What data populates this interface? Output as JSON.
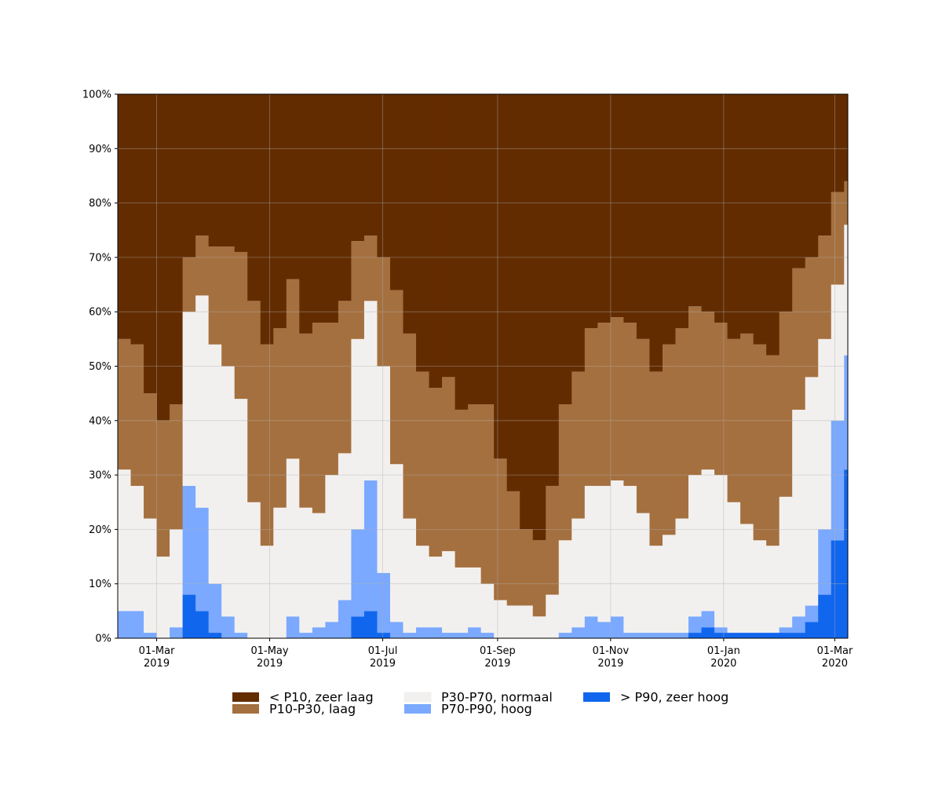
{
  "chart_data": {
    "type": "stacked_area_step",
    "x": [
      "2019-02-08",
      "2019-02-15",
      "2019-02-22",
      "2019-03-01",
      "2019-03-08",
      "2019-03-15",
      "2019-03-22",
      "2019-03-29",
      "2019-04-05",
      "2019-04-12",
      "2019-04-19",
      "2019-04-26",
      "2019-05-03",
      "2019-05-10",
      "2019-05-17",
      "2019-05-24",
      "2019-05-31",
      "2019-06-07",
      "2019-06-14",
      "2019-06-21",
      "2019-06-28",
      "2019-07-05",
      "2019-07-12",
      "2019-07-19",
      "2019-07-26",
      "2019-08-02",
      "2019-08-09",
      "2019-08-16",
      "2019-08-23",
      "2019-08-30",
      "2019-09-06",
      "2019-09-13",
      "2019-09-20",
      "2019-09-27",
      "2019-10-04",
      "2019-10-11",
      "2019-10-18",
      "2019-10-25",
      "2019-11-01",
      "2019-11-08",
      "2019-11-15",
      "2019-11-22",
      "2019-11-29",
      "2019-12-06",
      "2019-12-13",
      "2019-12-20",
      "2019-12-27",
      "2020-01-03",
      "2020-01-10",
      "2020-01-17",
      "2020-01-24",
      "2020-01-31",
      "2020-02-07",
      "2020-02-14",
      "2020-02-21",
      "2020-02-28",
      "2020-03-06"
    ],
    "series": [
      {
        "name": "< P10, zeer laag",
        "color": "#632c00",
        "values": [
          45,
          46,
          55,
          60,
          57,
          30,
          26,
          28,
          28,
          29,
          38,
          46,
          43,
          34,
          44,
          42,
          42,
          38,
          27,
          26,
          30,
          36,
          44,
          51,
          54,
          52,
          58,
          57,
          57,
          67,
          73,
          80,
          82,
          72,
          57,
          51,
          43,
          42,
          41,
          42,
          45,
          51,
          46,
          43,
          39,
          40,
          42,
          45,
          44,
          46,
          48,
          40,
          32,
          30,
          26,
          18,
          16
        ]
      },
      {
        "name": "P10-P30, laag",
        "color": "#a5703f",
        "values": [
          24,
          26,
          23,
          25,
          23,
          10,
          11,
          18,
          22,
          27,
          37,
          37,
          33,
          33,
          32,
          35,
          28,
          28,
          18,
          12,
          20,
          32,
          34,
          32,
          31,
          32,
          29,
          30,
          33,
          26,
          21,
          14,
          14,
          20,
          25,
          27,
          29,
          30,
          30,
          30,
          32,
          32,
          35,
          35,
          31,
          29,
          28,
          30,
          35,
          36,
          35,
          34,
          26,
          22,
          19,
          17,
          8
        ]
      },
      {
        "name": "P30-P70, normaal",
        "color": "#f2f0ef",
        "values": [
          26,
          23,
          21,
          15,
          18,
          32,
          39,
          44,
          46,
          43,
          25,
          17,
          24,
          29,
          23,
          21,
          27,
          27,
          35,
          33,
          38,
          29,
          21,
          15,
          13,
          15,
          12,
          11,
          9,
          7,
          6,
          6,
          4,
          8,
          17,
          20,
          24,
          25,
          25,
          27,
          22,
          16,
          18,
          21,
          26,
          26,
          28,
          24,
          20,
          17,
          16,
          24,
          38,
          42,
          35,
          25,
          24
        ]
      },
      {
        "name": "P70-P90, hoog",
        "color": "#7aa9ff",
        "values": [
          5,
          5,
          1,
          0,
          2,
          20,
          19,
          9,
          4,
          1,
          0,
          0,
          0,
          4,
          1,
          2,
          3,
          7,
          16,
          24,
          11,
          3,
          1,
          2,
          2,
          1,
          1,
          2,
          1,
          0,
          0,
          0,
          0,
          0,
          1,
          2,
          4,
          3,
          4,
          1,
          1,
          1,
          1,
          1,
          3,
          3,
          1,
          0,
          0,
          0,
          0,
          1,
          3,
          3,
          12,
          22,
          21
        ]
      },
      {
        "name": "> P90, zeer hoog",
        "color": "#1166ee",
        "values": [
          0,
          0,
          0,
          0,
          0,
          8,
          5,
          1,
          0,
          0,
          0,
          0,
          0,
          0,
          0,
          0,
          0,
          0,
          4,
          5,
          1,
          0,
          0,
          0,
          0,
          0,
          0,
          0,
          0,
          0,
          0,
          0,
          0,
          0,
          0,
          0,
          0,
          0,
          0,
          0,
          0,
          0,
          0,
          0,
          1,
          2,
          1,
          1,
          1,
          1,
          1,
          1,
          1,
          3,
          8,
          18,
          31
        ]
      }
    ],
    "xlim": [
      "2019-02-08",
      "2020-03-08"
    ],
    "xticks": [
      {
        "value": "2019-03-01",
        "label": "01-Mar\n2019"
      },
      {
        "value": "2019-05-01",
        "label": "01-May\n2019"
      },
      {
        "value": "2019-07-01",
        "label": "01-Jul\n2019"
      },
      {
        "value": "2019-09-01",
        "label": "01-Sep\n2019"
      },
      {
        "value": "2019-11-01",
        "label": "01-Nov\n2019"
      },
      {
        "value": "2020-01-01",
        "label": "01-Jan\n2020"
      },
      {
        "value": "2020-03-01",
        "label": "01-Mar\n2020"
      }
    ],
    "ylim": [
      0,
      100
    ],
    "yticks": [
      {
        "value": 0,
        "label": "0%"
      },
      {
        "value": 10,
        "label": "10%"
      },
      {
        "value": 20,
        "label": "20%"
      },
      {
        "value": 30,
        "label": "30%"
      },
      {
        "value": 40,
        "label": "40%"
      },
      {
        "value": 50,
        "label": "50%"
      },
      {
        "value": 60,
        "label": "60%"
      },
      {
        "value": 70,
        "label": "70%"
      },
      {
        "value": 80,
        "label": "80%"
      },
      {
        "value": 90,
        "label": "90%"
      },
      {
        "value": 100,
        "label": "100%"
      }
    ],
    "grid": true,
    "legend": "lower center"
  }
}
